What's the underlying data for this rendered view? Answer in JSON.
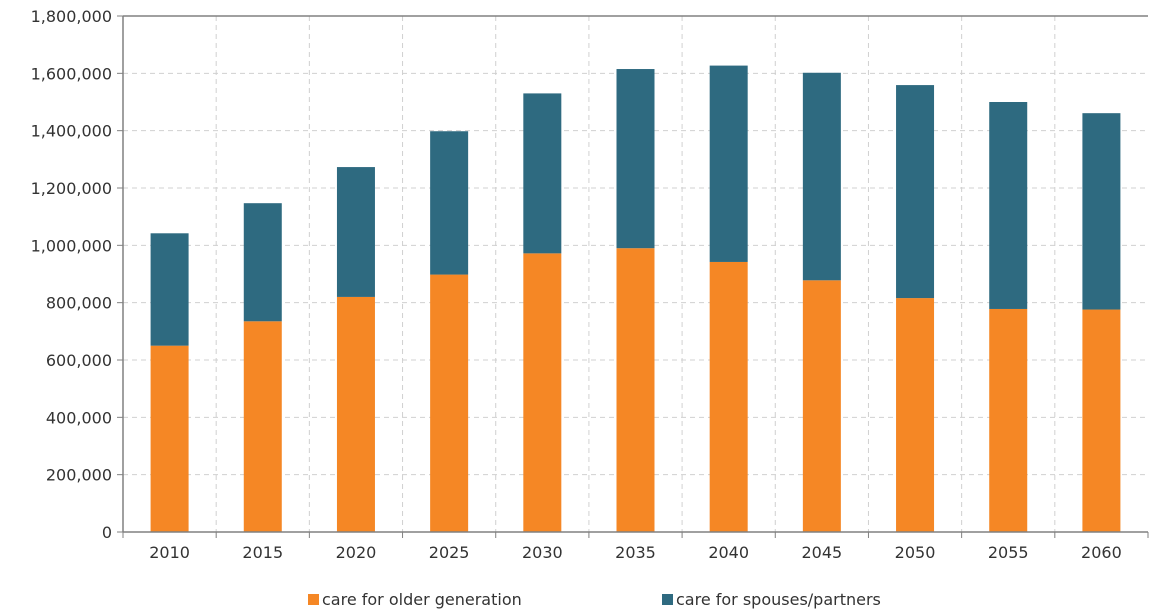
{
  "chart_data": {
    "type": "bar",
    "stacked": true,
    "categories": [
      "2010",
      "2015",
      "2020",
      "2025",
      "2030",
      "2035",
      "2040",
      "2045",
      "2050",
      "2055",
      "2060"
    ],
    "series": [
      {
        "name": "care for older generation",
        "color": "#f58725",
        "values": [
          650000,
          735000,
          820000,
          898000,
          972000,
          990000,
          942000,
          878000,
          816000,
          778000,
          776000
        ]
      },
      {
        "name": "care for spouses/partners",
        "color": "#2e6a80",
        "values": [
          392000,
          412000,
          453000,
          500000,
          558000,
          625000,
          685000,
          724000,
          743000,
          722000,
          685000
        ]
      }
    ],
    "ylim": [
      0,
      1800000
    ],
    "yticks": [
      0,
      200000,
      400000,
      600000,
      800000,
      1000000,
      1200000,
      1400000,
      1600000,
      1800000
    ],
    "ytick_labels": [
      "0",
      "200,000",
      "400,000",
      "600,000",
      "800,000",
      "1,000,000",
      "1,200,000",
      "1,400,000",
      "1,600,000",
      "1,800,000"
    ],
    "title": "",
    "xlabel": "",
    "ylabel": "",
    "grid": true,
    "legend_position": "bottom"
  }
}
